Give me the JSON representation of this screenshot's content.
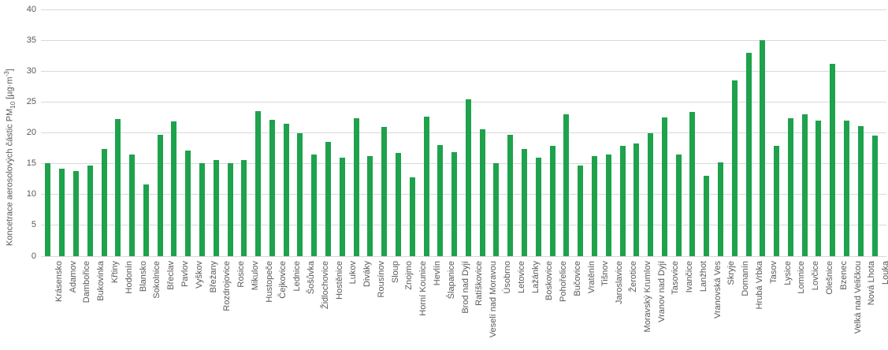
{
  "chart_data": {
    "type": "bar",
    "title": "",
    "xlabel": "",
    "ylabel": "Koncetrace aerosolových částic PM₁₀ [µg·m⁻³]",
    "ylabel_parts": {
      "prefix": "Koncetrace aerosolových částic PM",
      "sub": "10",
      "mid": " [µg·m",
      "sup": "-3",
      "suffix": "]"
    },
    "ylim": [
      0,
      40
    ],
    "yticks": [
      0,
      5,
      10,
      15,
      20,
      25,
      30,
      35,
      40
    ],
    "grid": true,
    "legend": "none",
    "bar_color": "#1ea24c",
    "gridline_color": "#d9d9d9",
    "text_color": "#595959",
    "categories": [
      "Krásensko",
      "Adamov",
      "Dambořice",
      "Bukovinka",
      "Křtiny",
      "Hodonín",
      "Blansko",
      "Sokolnice",
      "Břeclav",
      "Pavlov",
      "Vyškov",
      "Břežany",
      "Rozdrojovice",
      "Rosice",
      "Mikulov",
      "Hustopeče",
      "Čejkovice",
      "Lednice",
      "Šošůvka",
      "Židlochovice",
      "Hostěnice",
      "Lukov",
      "Diváky",
      "Rousínov",
      "Sloup",
      "Znojmo",
      "Horní Kounice",
      "Hevlín",
      "Šlapanice",
      "Brod nad Dyjí",
      "Ratíškovice",
      "Veselí nad Moravou",
      "Úsobrno",
      "Letovice",
      "Lažánky",
      "Boskovice",
      "Pohořelice",
      "Bučovice",
      "Vratěnín",
      "Tišnov",
      "Jaroslavice",
      "Žerotice",
      "Moravský Krumlov",
      "Vranov nad Dyjí",
      "Tasovice",
      "Ivančice",
      "Lanžhot",
      "Vranovská Ves",
      "Skryje",
      "Domanín",
      "Hrubá Vrbka",
      "Tasov",
      "Lysice",
      "Lomnice",
      "Lovčice",
      "Olešnice",
      "Bzenec",
      "Velká nad Veličkou",
      "Nová Lhota",
      "Louka"
    ],
    "values": [
      15.0,
      14.2,
      13.7,
      14.6,
      17.4,
      22.2,
      16.4,
      11.6,
      19.7,
      21.8,
      17.1,
      15.0,
      15.5,
      15.1,
      15.6,
      23.5,
      22.1,
      21.5,
      19.9,
      16.5,
      18.5,
      16.0,
      22.4,
      16.2,
      20.9,
      16.7,
      12.8,
      22.6,
      18.0,
      16.8,
      25.4,
      20.6,
      15.0,
      19.6,
      17.4,
      16.0,
      17.8,
      23.0,
      14.6,
      16.2,
      16.4,
      17.9,
      18.3,
      19.9,
      22.5,
      16.5,
      23.3,
      13.0,
      15.2,
      28.5,
      32.9,
      35.0,
      17.8,
      22.3,
      23.0,
      22.0,
      31.2,
      21.9,
      21.0,
      19.5
    ]
  }
}
